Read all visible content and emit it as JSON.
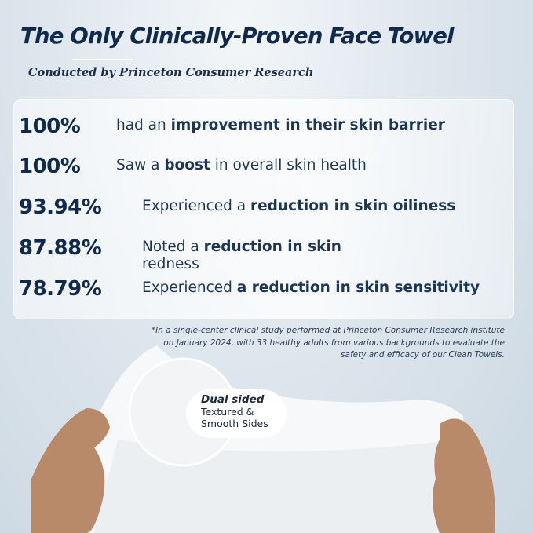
{
  "header": {
    "title": "The Only Clinically-Proven Face Towel",
    "subtitle": "Conducted by Princeton Consumer Research"
  },
  "stats": [
    {
      "value": "100%",
      "pre": "had an ",
      "bold": "improvement in their skin barrier",
      "post": ""
    },
    {
      "value": "100%",
      "pre": "Saw a ",
      "bold": "boost",
      "post": " in overall skin health"
    },
    {
      "value": "93.94%",
      "pre": "Experienced a ",
      "bold": "reduction in skin oiliness",
      "post": ""
    },
    {
      "value": "87.88%",
      "pre": "Noted a ",
      "bold": "reduction in skin",
      "post": "",
      "line2": "redness"
    },
    {
      "value": "78.79%",
      "pre": "Experienced ",
      "bold": "a reduction in skin sensitivity",
      "post": ""
    }
  ],
  "footnote": "*In a single-center clinical study performed at Princeton Consumer Research institute on January 2024, with 33 healthy adults from various backgrounds to evaluate the safety and efficacy of our Clean Towels.",
  "callout": {
    "heading": "Dual sided",
    "line1": "Textured &",
    "line2": "Smooth Sides"
  },
  "colors": {
    "navy": "#0f2a4d",
    "background": "#cbd8e2"
  }
}
